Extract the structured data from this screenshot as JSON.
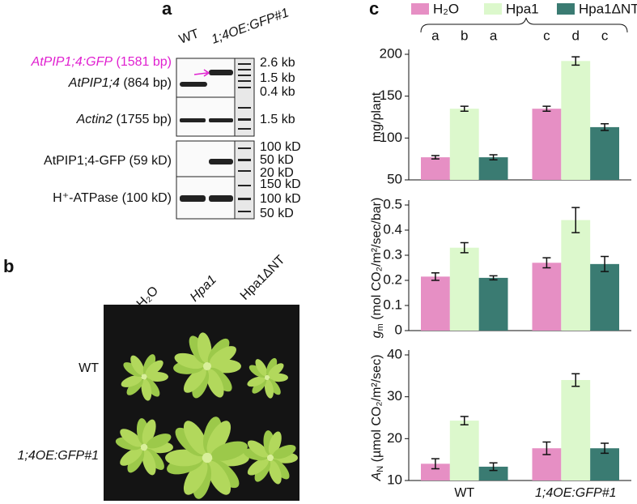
{
  "panels": {
    "a": "a",
    "b": "b",
    "c": "c"
  },
  "gel": {
    "lanes": [
      "WT",
      "1;4OE:GFP#1"
    ],
    "rows": [
      {
        "name": "AtPIP1;4:GFP",
        "size": "(1581 bp)"
      },
      {
        "name": "AtPIP1;4",
        "size": "(864 bp)"
      },
      {
        "name": "Actin2",
        "size": "(1755 bp)"
      },
      {
        "name": "AtPIP1;4-GFP (59 kD)"
      },
      {
        "name": "H⁺-ATPase (100 kD)"
      }
    ],
    "ladder": [
      "2.6 kb",
      "1.5 kb",
      "0.4 kb",
      "1.5 kb",
      "100 kD",
      "50 kD",
      "20 kD",
      "150 kD",
      "100 kD",
      "50 kD"
    ]
  },
  "photo": {
    "columns": [
      "H₂O",
      "Hpa1",
      "Hpa1ΔNT"
    ],
    "rows": [
      "WT",
      "1;4OE:GFP#1"
    ]
  },
  "chart_data": [
    {
      "type": "bar",
      "ylabel": "mg/plant",
      "ylim": [
        50,
        200
      ],
      "yticks": [
        50,
        100,
        150,
        200
      ],
      "annotations": [
        "a",
        "b",
        "a",
        "c",
        "d",
        "c"
      ],
      "series": [
        {
          "name": "H₂O",
          "color": "#e68fc4",
          "values": [
            77,
            135
          ],
          "errors": [
            2,
            3
          ]
        },
        {
          "name": "Hpa1",
          "color": "#dcf8cc",
          "values": [
            135,
            192
          ],
          "errors": [
            3,
            5
          ]
        },
        {
          "name": "Hpa1ΔNT",
          "color": "#3a7b72",
          "values": [
            77,
            113
          ],
          "errors": [
            3,
            4
          ]
        }
      ]
    },
    {
      "type": "bar",
      "ylabel": {
        "symbol": "g",
        "subscript": "m",
        "unit": " (mol CO₂/m²/sec/bar)"
      },
      "ylim": [
        0,
        0.5
      ],
      "yticks": [
        0,
        0.1,
        0.2,
        0.3,
        0.4,
        0.5
      ],
      "series": [
        {
          "color": "#e68fc4",
          "values": [
            0.215,
            0.27
          ],
          "errors": [
            0.015,
            0.02
          ]
        },
        {
          "color": "#dcf8cc",
          "values": [
            0.33,
            0.44
          ],
          "errors": [
            0.02,
            0.05
          ]
        },
        {
          "color": "#3a7b72",
          "values": [
            0.21,
            0.265
          ],
          "errors": [
            0.008,
            0.03
          ]
        }
      ]
    },
    {
      "type": "bar",
      "ylabel": {
        "symbol": "A",
        "subscript": "N",
        "unit": " (µmol CO₂/m²/sec)"
      },
      "ylim": [
        10,
        40
      ],
      "yticks": [
        10,
        20,
        30,
        40
      ],
      "categories": [
        "WT",
        "1;4OE:GFP#1"
      ],
      "series": [
        {
          "color": "#e68fc4",
          "values": [
            14,
            17.7
          ],
          "errors": [
            1.2,
            1.5
          ]
        },
        {
          "color": "#dcf8cc",
          "values": [
            24.3,
            34
          ],
          "errors": [
            1,
            1.5
          ]
        },
        {
          "color": "#3a7b72",
          "values": [
            13.3,
            17.7
          ],
          "errors": [
            0.9,
            1.2
          ]
        }
      ]
    }
  ]
}
